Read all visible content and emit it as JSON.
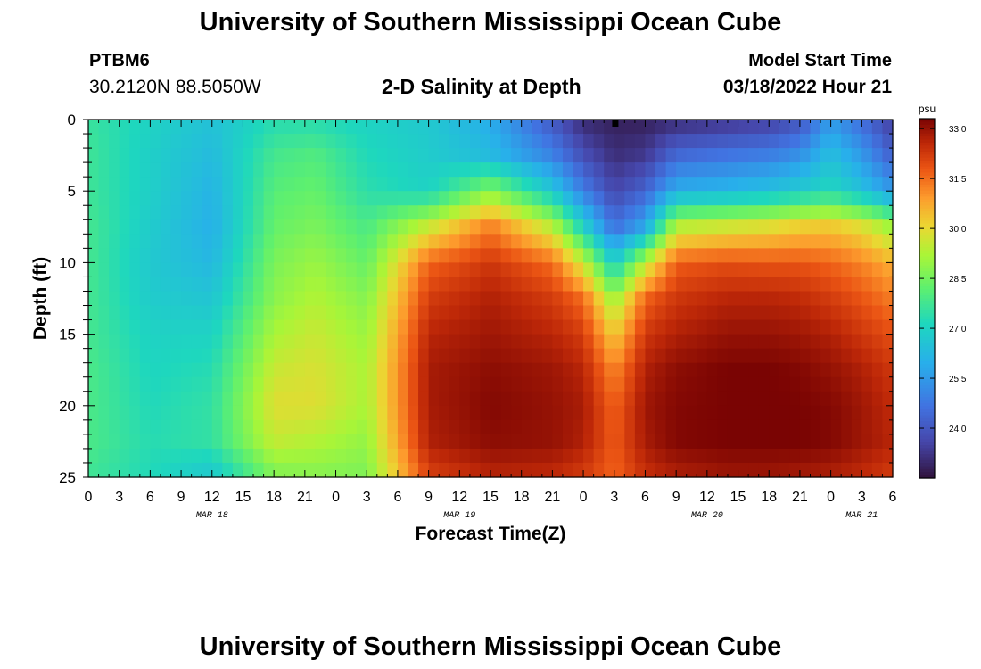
{
  "header": {
    "title": "University of Southern Mississippi Ocean Cube",
    "station_id": "PTBM6",
    "station_coords": "30.2120N  88.5050W",
    "subtitle": "2-D Salinity at Depth",
    "model_start_label": "Model Start Time",
    "model_start_value": "03/18/2022 Hour 21"
  },
  "footer": {
    "title": "University of Southern Mississippi Ocean Cube"
  },
  "chart_data": {
    "type": "heatmap",
    "title": "2-D Salinity at Depth",
    "xlabel": "Forecast Time(Z)",
    "ylabel": "Depth (ft)",
    "x_hours_range": [
      0,
      78
    ],
    "x_tick_labels": [
      "0",
      "3",
      "6",
      "9",
      "12",
      "15",
      "18",
      "21",
      "0",
      "3",
      "6",
      "9",
      "12",
      "15",
      "18",
      "21",
      "0",
      "3",
      "6",
      "9",
      "12",
      "15",
      "18",
      "21",
      "0",
      "3",
      "6"
    ],
    "date_labels": [
      {
        "hour": 12,
        "text": "MAR 18"
      },
      {
        "hour": 36,
        "text": "MAR 19"
      },
      {
        "hour": 60,
        "text": "MAR 20"
      },
      {
        "hour": 75,
        "text": "MAR 21"
      }
    ],
    "ylim": [
      0,
      25
    ],
    "y_major_ticks": [
      0,
      5,
      10,
      15,
      20,
      25
    ],
    "colorbar": {
      "label": "psu",
      "range": [
        22.5,
        33.3
      ],
      "ticks": [
        "33.0",
        "31.5",
        "30.0",
        "28.5",
        "27.0",
        "25.5",
        "24.0"
      ]
    },
    "salinity_grid": {
      "units": "psu",
      "depths_ft": [
        0,
        2.5,
        5,
        7.5,
        10,
        12.5,
        15,
        17.5,
        20,
        22.5,
        25
      ],
      "times_hr": [
        0,
        6,
        12,
        18,
        22,
        27,
        33,
        39,
        45,
        48,
        51,
        54,
        57,
        62,
        66,
        69,
        72,
        75,
        78
      ],
      "values": [
        [
          27.6,
          27.0,
          26.5,
          27.3,
          27.3,
          27.0,
          26.7,
          25.9,
          24.0,
          23.0,
          22.8,
          22.8,
          23.0,
          23.2,
          23.4,
          23.9,
          25.5,
          24.5,
          23.4
        ],
        [
          27.7,
          26.9,
          26.3,
          27.8,
          28.0,
          27.2,
          26.8,
          26.3,
          25.0,
          23.8,
          23.1,
          23.3,
          24.4,
          24.7,
          24.9,
          25.3,
          26.4,
          25.5,
          24.2
        ],
        [
          27.7,
          26.9,
          26.1,
          28.1,
          28.3,
          27.4,
          27.0,
          28.8,
          26.7,
          24.9,
          23.6,
          24.3,
          26.0,
          26.2,
          26.5,
          26.8,
          27.2,
          26.5,
          25.5
        ],
        [
          27.8,
          26.8,
          26.0,
          28.3,
          28.6,
          27.9,
          29.6,
          31.3,
          29.4,
          27.0,
          24.6,
          25.8,
          29.4,
          29.7,
          29.9,
          30.2,
          30.3,
          29.9,
          29.0
        ],
        [
          27.8,
          26.7,
          26.2,
          28.6,
          29.0,
          28.3,
          31.6,
          32.3,
          31.5,
          29.6,
          26.8,
          29.4,
          31.7,
          31.9,
          31.8,
          31.8,
          31.6,
          31.2,
          30.6
        ],
        [
          27.8,
          26.8,
          26.6,
          28.8,
          29.3,
          28.7,
          32.2,
          32.7,
          32.2,
          31.5,
          28.9,
          31.6,
          32.3,
          32.6,
          32.6,
          32.5,
          32.2,
          31.8,
          31.3
        ],
        [
          27.8,
          27.0,
          27.0,
          29.2,
          29.6,
          29.0,
          32.6,
          32.9,
          32.6,
          32.2,
          30.2,
          32.3,
          32.7,
          33.0,
          33.0,
          32.9,
          32.7,
          32.3,
          31.9
        ],
        [
          27.9,
          27.1,
          27.3,
          29.6,
          29.8,
          29.2,
          32.8,
          33.1,
          32.9,
          32.6,
          31.1,
          32.7,
          33.1,
          33.3,
          33.3,
          33.2,
          33.0,
          32.7,
          32.3
        ],
        [
          27.9,
          27.2,
          27.5,
          29.9,
          29.9,
          29.2,
          32.8,
          33.2,
          33.0,
          32.8,
          31.6,
          32.9,
          33.2,
          33.3,
          33.3,
          33.3,
          33.2,
          32.9,
          32.5
        ],
        [
          27.9,
          27.3,
          27.5,
          29.5,
          29.3,
          28.9,
          32.7,
          33.1,
          33.0,
          32.7,
          31.7,
          32.8,
          33.2,
          33.3,
          33.3,
          33.3,
          33.2,
          32.9,
          32.6
        ],
        [
          27.7,
          27.2,
          26.6,
          28.6,
          28.7,
          28.6,
          32.1,
          32.6,
          32.5,
          32.2,
          31.6,
          32.4,
          32.7,
          32.9,
          32.9,
          32.8,
          32.7,
          32.5,
          32.2
        ]
      ]
    }
  }
}
